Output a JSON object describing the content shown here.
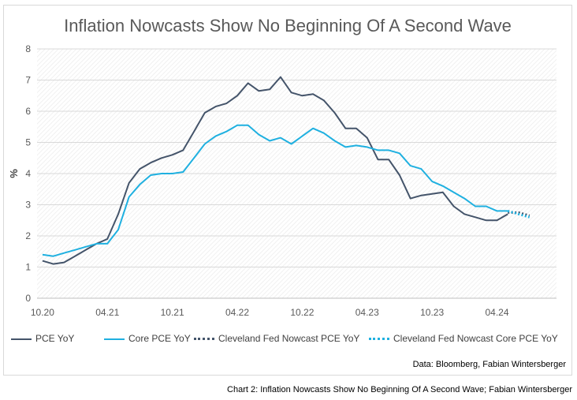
{
  "colors": {
    "pce": "#44546a",
    "core": "#1fb0e0",
    "grid": "#d9d9d9"
  },
  "chart_data": {
    "type": "line",
    "title": "Inflation Nowcasts Show No Beginning Of A Second Wave",
    "ylabel": "%",
    "xlabel": "",
    "ylim": [
      0,
      8
    ],
    "y_ticks": [
      "0",
      "1",
      "2",
      "3",
      "4",
      "5",
      "6",
      "7",
      "8"
    ],
    "x_ticks": [
      {
        "label": "10.20",
        "index": 0
      },
      {
        "label": "04.21",
        "index": 6
      },
      {
        "label": "10.21",
        "index": 12
      },
      {
        "label": "04.22",
        "index": 18
      },
      {
        "label": "10.22",
        "index": 24
      },
      {
        "label": "04.23",
        "index": 30
      },
      {
        "label": "10.23",
        "index": 36
      },
      {
        "label": "04.24",
        "index": 42
      }
    ],
    "x_count": 48,
    "grid": true,
    "legend_position": "bottom",
    "series": [
      {
        "name": "PCE YoY",
        "style": "solid",
        "color_key": "pce",
        "start_index": 0,
        "values": [
          1.2,
          1.1,
          1.15,
          1.35,
          1.55,
          1.75,
          1.9,
          2.7,
          3.7,
          4.15,
          4.35,
          4.5,
          4.6,
          4.75,
          5.35,
          5.95,
          6.15,
          6.25,
          6.5,
          6.9,
          6.65,
          6.7,
          7.1,
          6.6,
          6.5,
          6.55,
          6.35,
          5.95,
          5.45,
          5.45,
          5.15,
          4.45,
          4.45,
          3.95,
          3.2,
          3.3,
          3.35,
          3.4,
          2.95,
          2.7,
          2.6,
          2.5,
          2.5,
          2.7
        ]
      },
      {
        "name": "Core PCE YoY",
        "style": "solid",
        "color_key": "core",
        "start_index": 0,
        "values": [
          1.4,
          1.35,
          1.45,
          1.55,
          1.65,
          1.75,
          1.75,
          2.2,
          3.25,
          3.65,
          3.95,
          4.0,
          4.0,
          4.05,
          4.5,
          4.95,
          5.2,
          5.35,
          5.55,
          5.55,
          5.25,
          5.05,
          5.15,
          4.95,
          5.2,
          5.45,
          5.3,
          5.05,
          4.85,
          4.9,
          4.85,
          4.75,
          4.75,
          4.65,
          4.25,
          4.15,
          3.75,
          3.6,
          3.4,
          3.2,
          2.95,
          2.95,
          2.8,
          2.8
        ]
      },
      {
        "name": "Cleveland Fed Nowcast PCE YoY",
        "style": "dotted",
        "color_key": "pce",
        "start_index": 43,
        "values": [
          2.75,
          2.75,
          2.65
        ]
      },
      {
        "name": "Cleveland Fed Nowcast Core PCE YoY",
        "style": "dotted",
        "color_key": "core",
        "start_index": 43,
        "values": [
          2.8,
          2.7,
          2.6
        ]
      }
    ]
  },
  "source_text": "Data: Bloomberg, Fabian Wintersberger",
  "caption_text": "Chart 2: Inflation Nowcasts Show No Beginning Of A Second Wave; Fabian Wintersberger"
}
